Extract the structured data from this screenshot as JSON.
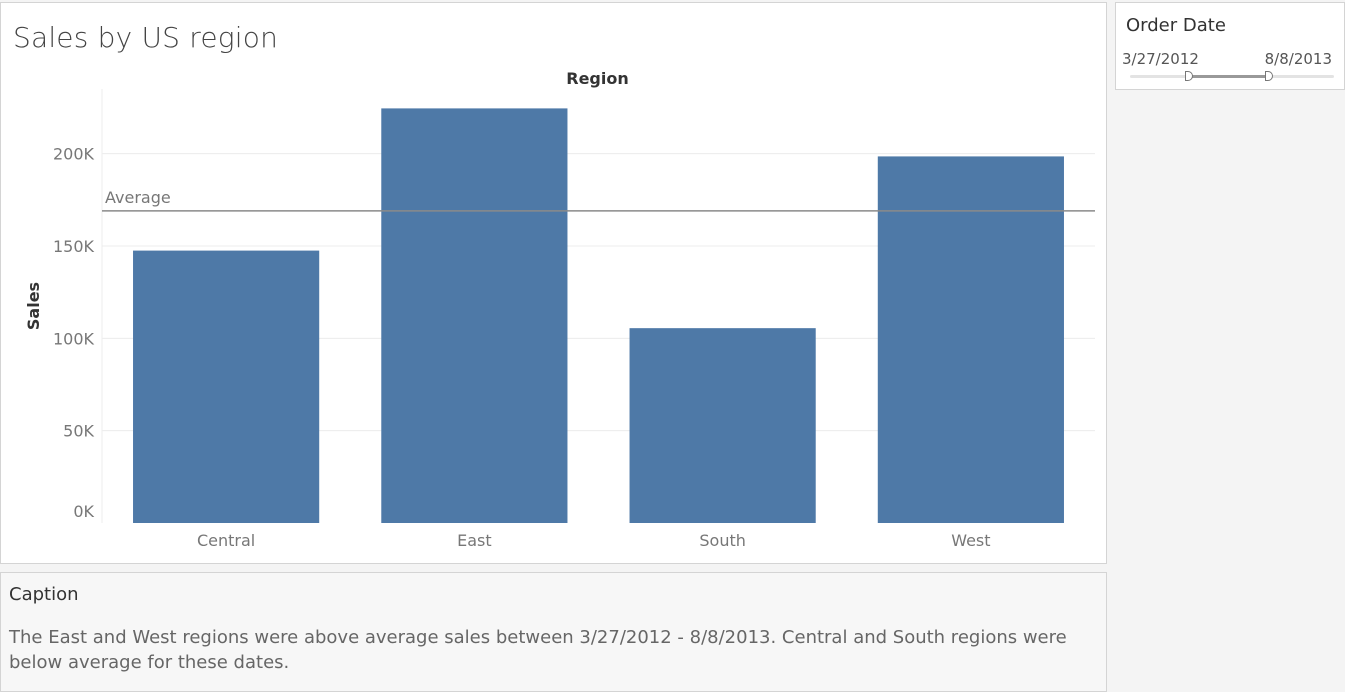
{
  "chart_title": "Sales by US region",
  "filter": {
    "title": "Order Date",
    "start_label": "3/27/2012",
    "end_label": "8/8/2013",
    "range_start_fraction": 0.29,
    "range_end_fraction": 0.68
  },
  "caption": {
    "title": "Caption",
    "text": "The East and West regions were above average sales between 3/27/2012 - 8/8/2013. Central and South regions were below average for these dates."
  },
  "colors": {
    "bar": "#4e79a7",
    "reference_line": "#8a8a8a",
    "gridline": "#ececec"
  },
  "chart_data": {
    "type": "bar",
    "column_header": "Region",
    "categories": [
      "Central",
      "East",
      "South",
      "West"
    ],
    "values": [
      147500,
      224500,
      105500,
      198500
    ],
    "ylabel": "Sales",
    "ylim": [
      0,
      235000
    ],
    "yticks": [
      0,
      50000,
      100000,
      150000,
      200000
    ],
    "ytick_labels": [
      "0K",
      "50K",
      "100K",
      "150K",
      "200K"
    ],
    "reference_line": {
      "label": "Average",
      "value": 169000
    },
    "grid": true
  }
}
